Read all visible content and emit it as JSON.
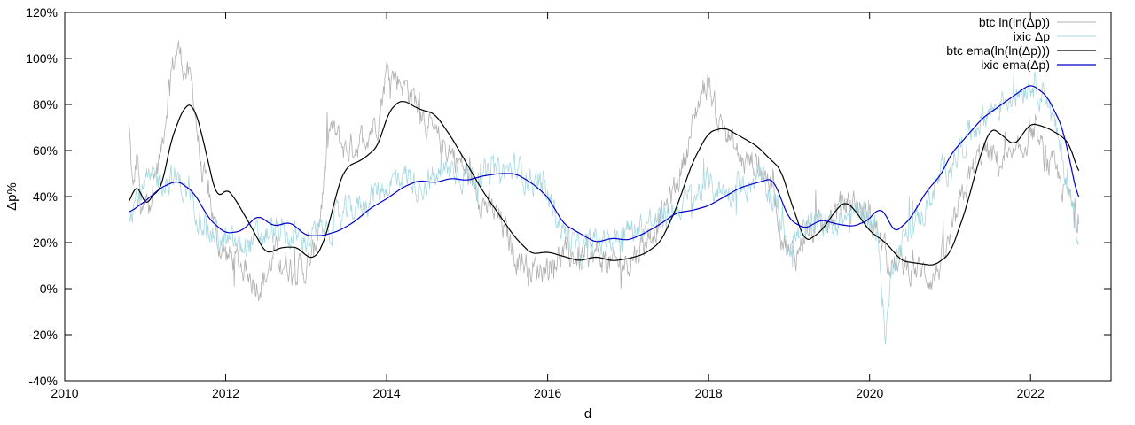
{
  "chart_data": {
    "type": "line",
    "title": "",
    "xlabel": "d",
    "ylabel": "Δp%",
    "xlim": [
      2010,
      2023
    ],
    "ylim": [
      -40,
      120
    ],
    "xticks": [
      2010,
      2012,
      2014,
      2016,
      2018,
      2020,
      2022
    ],
    "yticks": [
      -40,
      -20,
      0,
      20,
      40,
      60,
      80,
      100,
      120
    ],
    "ytick_labels": [
      "-40%",
      "-20%",
      "0%",
      "20%",
      "40%",
      "60%",
      "80%",
      "100%",
      "120%"
    ],
    "grid": false,
    "legend_position": "top-right",
    "series": [
      {
        "name": "btc ln(ln(Δp))",
        "color": "#b0b0b0",
        "noisy": true,
        "x": [
          2010.8,
          2010.85,
          2010.9,
          2010.95,
          2011.0,
          2011.1,
          2011.2,
          2011.3,
          2011.4,
          2011.5,
          2011.6,
          2011.7,
          2011.8,
          2011.9,
          2012.0,
          2012.2,
          2012.4,
          2012.5,
          2012.6,
          2012.8,
          2013.0,
          2013.1,
          2013.2,
          2013.3,
          2013.5,
          2013.7,
          2013.9,
          2014.0,
          2014.2,
          2014.4,
          2014.6,
          2014.8,
          2015.0,
          2015.2,
          2015.4,
          2015.6,
          2015.8,
          2016.0,
          2016.2,
          2016.4,
          2016.6,
          2016.8,
          2017.0,
          2017.2,
          2017.4,
          2017.6,
          2017.8,
          2017.9,
          2018.0,
          2018.1,
          2018.2,
          2018.4,
          2018.6,
          2018.8,
          2018.9,
          2019.0,
          2019.1,
          2019.2,
          2019.4,
          2019.6,
          2019.8,
          2020.0,
          2020.1,
          2020.2,
          2020.3,
          2020.4,
          2020.6,
          2020.8,
          2021.0,
          2021.2,
          2021.4,
          2021.6,
          2021.8,
          2021.9,
          2022.0,
          2022.2,
          2022.4,
          2022.6
        ],
        "y": [
          70,
          40,
          60,
          30,
          35,
          45,
          60,
          90,
          105,
          95,
          85,
          50,
          40,
          20,
          15,
          10,
          2,
          5,
          15,
          10,
          8,
          15,
          40,
          70,
          60,
          65,
          75,
          95,
          90,
          80,
          65,
          60,
          50,
          38,
          30,
          15,
          8,
          10,
          15,
          13,
          15,
          10,
          12,
          20,
          30,
          45,
          70,
          85,
          90,
          75,
          70,
          55,
          55,
          45,
          25,
          15,
          15,
          25,
          25,
          35,
          38,
          30,
          25,
          15,
          10,
          10,
          8,
          5,
          20,
          45,
          60,
          55,
          55,
          60,
          70,
          55,
          45,
          28
        ]
      },
      {
        "name": "ixic Δp",
        "color": "#a6d8e0",
        "noisy": true,
        "x": [
          2010.8,
          2011.0,
          2011.2,
          2011.4,
          2011.6,
          2011.8,
          2012.0,
          2012.2,
          2012.4,
          2012.6,
          2012.8,
          2013.0,
          2013.2,
          2013.4,
          2013.6,
          2013.8,
          2014.0,
          2014.2,
          2014.4,
          2014.6,
          2014.8,
          2015.0,
          2015.2,
          2015.4,
          2015.6,
          2015.8,
          2016.0,
          2016.2,
          2016.4,
          2016.6,
          2016.8,
          2017.0,
          2017.2,
          2017.4,
          2017.6,
          2017.8,
          2018.0,
          2018.2,
          2018.4,
          2018.6,
          2018.8,
          2019.0,
          2019.2,
          2019.4,
          2019.6,
          2019.8,
          2020.0,
          2020.1,
          2020.2,
          2020.3,
          2020.5,
          2020.7,
          2020.9,
          2021.0,
          2021.2,
          2021.4,
          2021.6,
          2021.8,
          2022.0,
          2022.2,
          2022.4,
          2022.6
        ],
        "y": [
          35,
          45,
          48,
          47,
          38,
          25,
          20,
          18,
          22,
          25,
          22,
          22,
          25,
          30,
          35,
          40,
          45,
          50,
          45,
          48,
          52,
          50,
          48,
          50,
          52,
          48,
          40,
          25,
          15,
          20,
          22,
          25,
          28,
          30,
          35,
          40,
          45,
          42,
          45,
          48,
          40,
          20,
          25,
          28,
          30,
          32,
          35,
          20,
          -20,
          15,
          25,
          35,
          50,
          55,
          65,
          75,
          80,
          85,
          90,
          85,
          55,
          25
        ]
      },
      {
        "name": "btc ema(ln(ln(Δp)))",
        "color": "#000000",
        "noisy": false,
        "x": [
          2010.8,
          2010.9,
          2011.0,
          2011.1,
          2011.2,
          2011.3,
          2011.4,
          2011.5,
          2011.6,
          2011.7,
          2011.8,
          2011.9,
          2012.0,
          2012.1,
          2012.3,
          2012.5,
          2012.7,
          2012.9,
          2013.0,
          2013.1,
          2013.2,
          2013.3,
          2013.4,
          2013.5,
          2013.7,
          2013.9,
          2014.0,
          2014.1,
          2014.2,
          2014.4,
          2014.6,
          2014.8,
          2015.0,
          2015.2,
          2015.4,
          2015.6,
          2015.8,
          2016.0,
          2016.2,
          2016.4,
          2016.6,
          2016.8,
          2017.0,
          2017.2,
          2017.4,
          2017.6,
          2017.8,
          2018.0,
          2018.2,
          2018.4,
          2018.6,
          2018.8,
          2018.9,
          2019.0,
          2019.1,
          2019.2,
          2019.4,
          2019.6,
          2019.7,
          2019.8,
          2020.0,
          2020.2,
          2020.4,
          2020.6,
          2020.8,
          2021.0,
          2021.2,
          2021.35,
          2021.5,
          2021.6,
          2021.8,
          2022.0,
          2022.2,
          2022.4,
          2022.5,
          2022.6
        ],
        "y": [
          36,
          48,
          34,
          42,
          42,
          62,
          72,
          80,
          80,
          68,
          52,
          38,
          44,
          40,
          28,
          15,
          18,
          18,
          14,
          13,
          18,
          30,
          45,
          53,
          56,
          62,
          75,
          80,
          82,
          78,
          76,
          66,
          54,
          42,
          32,
          22,
          15,
          16,
          14,
          12,
          14,
          12,
          13,
          15,
          20,
          35,
          55,
          68,
          70,
          66,
          62,
          55,
          52,
          40,
          30,
          20,
          25,
          35,
          38,
          35,
          25,
          20,
          12,
          11,
          10,
          15,
          35,
          55,
          70,
          68,
          62,
          72,
          70,
          66,
          62,
          49
        ]
      },
      {
        "name": "ixic ema(Δp)",
        "color": "#0000cc",
        "noisy": false,
        "x": [
          2010.8,
          2011.0,
          2011.2,
          2011.4,
          2011.6,
          2011.8,
          2012.0,
          2012.2,
          2012.4,
          2012.6,
          2012.8,
          2013.0,
          2013.2,
          2013.4,
          2013.6,
          2013.8,
          2014.0,
          2014.2,
          2014.4,
          2014.6,
          2014.8,
          2015.0,
          2015.2,
          2015.4,
          2015.6,
          2015.8,
          2016.0,
          2016.2,
          2016.4,
          2016.6,
          2016.8,
          2017.0,
          2017.2,
          2017.4,
          2017.6,
          2017.8,
          2018.0,
          2018.2,
          2018.4,
          2018.6,
          2018.8,
          2019.0,
          2019.2,
          2019.4,
          2019.6,
          2019.8,
          2020.0,
          2020.1,
          2020.2,
          2020.3,
          2020.5,
          2020.7,
          2020.9,
          2021.0,
          2021.2,
          2021.4,
          2021.6,
          2021.8,
          2022.0,
          2022.2,
          2022.4,
          2022.6
        ],
        "y": [
          33,
          38,
          44,
          47,
          42,
          30,
          24,
          25,
          32,
          27,
          29,
          23,
          23,
          25,
          29,
          35,
          39,
          44,
          47,
          46,
          48,
          47,
          49,
          50,
          50,
          46,
          40,
          28,
          24,
          20,
          22,
          21,
          24,
          28,
          33,
          34,
          36,
          40,
          44,
          46,
          48,
          30,
          26,
          30,
          28,
          27,
          30,
          35,
          33,
          24,
          30,
          42,
          50,
          58,
          66,
          74,
          79,
          84,
          89,
          84,
          70,
          37
        ]
      }
    ]
  }
}
